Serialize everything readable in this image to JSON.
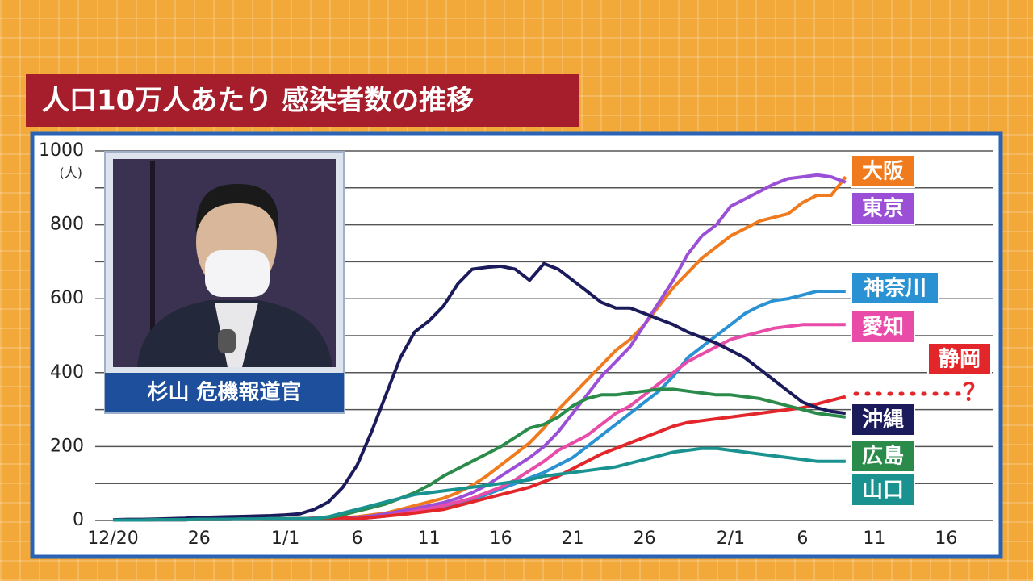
{
  "chart_data": {
    "type": "line",
    "title": "人口10万人あたり 感染者数の推移",
    "y_unit": "(人)",
    "categories": [
      "12/20",
      null,
      null,
      null,
      null,
      null,
      "26",
      null,
      null,
      null,
      null,
      null,
      "1/1",
      null,
      null,
      null,
      null,
      "6",
      null,
      null,
      null,
      null,
      "11",
      null,
      null,
      null,
      null,
      "16",
      null,
      null,
      null,
      null,
      "21",
      null,
      null,
      null,
      null,
      "26",
      null,
      null,
      null,
      null,
      null,
      "2/1",
      null,
      null,
      null,
      null,
      "6",
      null,
      null,
      null,
      null,
      "11",
      null,
      null,
      null,
      null,
      "16",
      null,
      null,
      null
    ],
    "ylim": [
      0,
      1000
    ],
    "yticks": [
      0,
      200,
      400,
      600,
      800,
      1000
    ],
    "grid_yticks": [
      100,
      300,
      500,
      700,
      900
    ],
    "grid": true,
    "series": [
      {
        "name": "大阪",
        "color": "#f07a1e",
        "values": [
          1,
          1,
          1,
          2,
          2,
          2,
          3,
          3,
          3,
          4,
          4,
          5,
          5,
          5,
          6,
          6,
          7,
          10,
          15,
          20,
          30,
          40,
          50,
          60,
          75,
          95,
          120,
          150,
          180,
          210,
          250,
          300,
          340,
          380,
          420,
          460,
          490,
          530,
          580,
          630,
          670,
          710,
          740,
          770,
          790,
          810,
          820,
          830,
          860,
          880,
          880,
          930,
          null,
          null,
          null,
          null,
          null,
          null,
          null,
          null,
          null,
          null
        ]
      },
      {
        "name": "東京",
        "color": "#9a4fd6",
        "values": [
          1,
          1,
          1,
          2,
          2,
          2,
          3,
          3,
          3,
          4,
          4,
          5,
          5,
          5,
          6,
          6,
          7,
          8,
          12,
          18,
          25,
          32,
          40,
          48,
          60,
          75,
          95,
          120,
          145,
          170,
          200,
          240,
          290,
          340,
          390,
          430,
          470,
          530,
          590,
          650,
          720,
          770,
          800,
          850,
          870,
          890,
          910,
          925,
          930,
          935,
          930,
          915,
          null,
          null,
          null,
          null,
          null,
          null,
          null,
          null,
          null,
          null
        ]
      },
      {
        "name": "神奈川",
        "color": "#2a92d2",
        "values": [
          1,
          1,
          1,
          2,
          2,
          2,
          3,
          3,
          3,
          4,
          4,
          5,
          5,
          5,
          6,
          6,
          7,
          5,
          8,
          12,
          18,
          22,
          28,
          35,
          45,
          55,
          70,
          85,
          100,
          115,
          130,
          150,
          170,
          200,
          230,
          260,
          290,
          320,
          350,
          390,
          440,
          470,
          500,
          530,
          560,
          580,
          595,
          600,
          610,
          620,
          620,
          620,
          null,
          null,
          null,
          null,
          null,
          null,
          null,
          null,
          null,
          null
        ]
      },
      {
        "name": "愛知",
        "color": "#e84ba8",
        "values": [
          1,
          1,
          1,
          2,
          2,
          2,
          3,
          3,
          3,
          4,
          4,
          5,
          5,
          5,
          6,
          6,
          7,
          5,
          8,
          12,
          18,
          25,
          32,
          40,
          50,
          60,
          75,
          90,
          110,
          135,
          160,
          190,
          210,
          230,
          260,
          290,
          310,
          340,
          370,
          400,
          430,
          450,
          470,
          490,
          500,
          510,
          520,
          525,
          530,
          530,
          530,
          530,
          null,
          null,
          null,
          null,
          null,
          null,
          null,
          null,
          null,
          null
        ]
      },
      {
        "name": "静岡",
        "color": "#e2262a",
        "values": [
          1,
          1,
          1,
          2,
          2,
          2,
          3,
          3,
          3,
          4,
          4,
          5,
          5,
          5,
          6,
          6,
          7,
          5,
          8,
          12,
          16,
          20,
          25,
          30,
          40,
          50,
          60,
          70,
          80,
          90,
          105,
          120,
          140,
          160,
          180,
          195,
          210,
          225,
          240,
          255,
          265,
          270,
          275,
          280,
          285,
          290,
          295,
          300,
          305,
          315,
          325,
          335,
          null,
          null,
          null,
          null,
          null,
          null,
          null,
          null,
          null,
          null
        ]
      },
      {
        "name": "沖縄",
        "color": "#1b1b5c",
        "values": [
          2,
          3,
          3,
          4,
          5,
          6,
          8,
          9,
          10,
          11,
          12,
          13,
          15,
          18,
          30,
          50,
          90,
          150,
          240,
          340,
          440,
          510,
          540,
          580,
          640,
          680,
          685,
          688,
          680,
          650,
          695,
          680,
          650,
          620,
          590,
          575,
          575,
          560,
          545,
          530,
          510,
          495,
          480,
          460,
          440,
          410,
          380,
          350,
          320,
          305,
          295,
          290,
          null,
          null,
          null,
          null,
          null,
          null,
          null,
          null,
          null,
          null
        ]
      },
      {
        "name": "広島",
        "color": "#2b8b4b",
        "values": [
          1,
          1,
          1,
          2,
          2,
          2,
          3,
          3,
          3,
          4,
          4,
          5,
          5,
          5,
          5,
          8,
          15,
          25,
          35,
          45,
          60,
          75,
          95,
          120,
          140,
          160,
          180,
          200,
          225,
          250,
          260,
          280,
          310,
          330,
          340,
          340,
          345,
          350,
          355,
          355,
          350,
          345,
          340,
          340,
          335,
          330,
          320,
          310,
          300,
          290,
          285,
          280,
          null,
          null,
          null,
          null,
          null,
          null,
          null,
          null,
          null,
          null
        ]
      },
      {
        "name": "山口",
        "color": "#1a9390",
        "values": [
          1,
          1,
          1,
          2,
          2,
          2,
          3,
          3,
          3,
          4,
          4,
          5,
          5,
          5,
          5,
          10,
          20,
          30,
          40,
          50,
          60,
          70,
          75,
          80,
          85,
          90,
          95,
          100,
          105,
          110,
          120,
          125,
          130,
          135,
          140,
          145,
          155,
          165,
          175,
          185,
          190,
          195,
          195,
          190,
          185,
          180,
          175,
          170,
          165,
          160,
          160,
          160,
          null,
          null,
          null,
          null,
          null,
          null,
          null,
          null,
          null,
          null
        ]
      }
    ],
    "annotation": "？"
  },
  "caption": "杉山 危機報道官"
}
